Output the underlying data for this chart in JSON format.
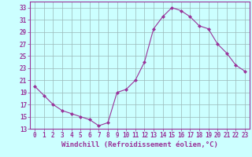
{
  "x": [
    0,
    1,
    2,
    3,
    4,
    5,
    6,
    7,
    8,
    9,
    10,
    11,
    12,
    13,
    14,
    15,
    16,
    17,
    18,
    19,
    20,
    21,
    22,
    23
  ],
  "y": [
    20,
    18.5,
    17,
    16,
    15.5,
    15,
    14.5,
    13.5,
    14,
    19,
    19.5,
    21,
    24,
    29.5,
    31.5,
    33,
    32.5,
    31.5,
    30,
    29.5,
    27,
    25.5,
    23.5,
    22.5
  ],
  "line_color": "#993399",
  "marker": "D",
  "marker_size": 2,
  "bg_color": "#ccffff",
  "grid_color": "#9ab8b8",
  "xlabel": "Windchill (Refroidissement éolien,°C)",
  "ylim": [
    13,
    34
  ],
  "yticks": [
    13,
    15,
    17,
    19,
    21,
    23,
    25,
    27,
    29,
    31,
    33
  ],
  "xlim": [
    -0.5,
    23.5
  ],
  "xticks": [
    0,
    1,
    2,
    3,
    4,
    5,
    6,
    7,
    8,
    9,
    10,
    11,
    12,
    13,
    14,
    15,
    16,
    17,
    18,
    19,
    20,
    21,
    22,
    23
  ],
  "tick_color": "#993399",
  "tick_label_color": "#993399",
  "xlabel_color": "#993399",
  "spine_color": "#993399",
  "tick_fontsize": 5.5,
  "xlabel_fontsize": 6.5
}
